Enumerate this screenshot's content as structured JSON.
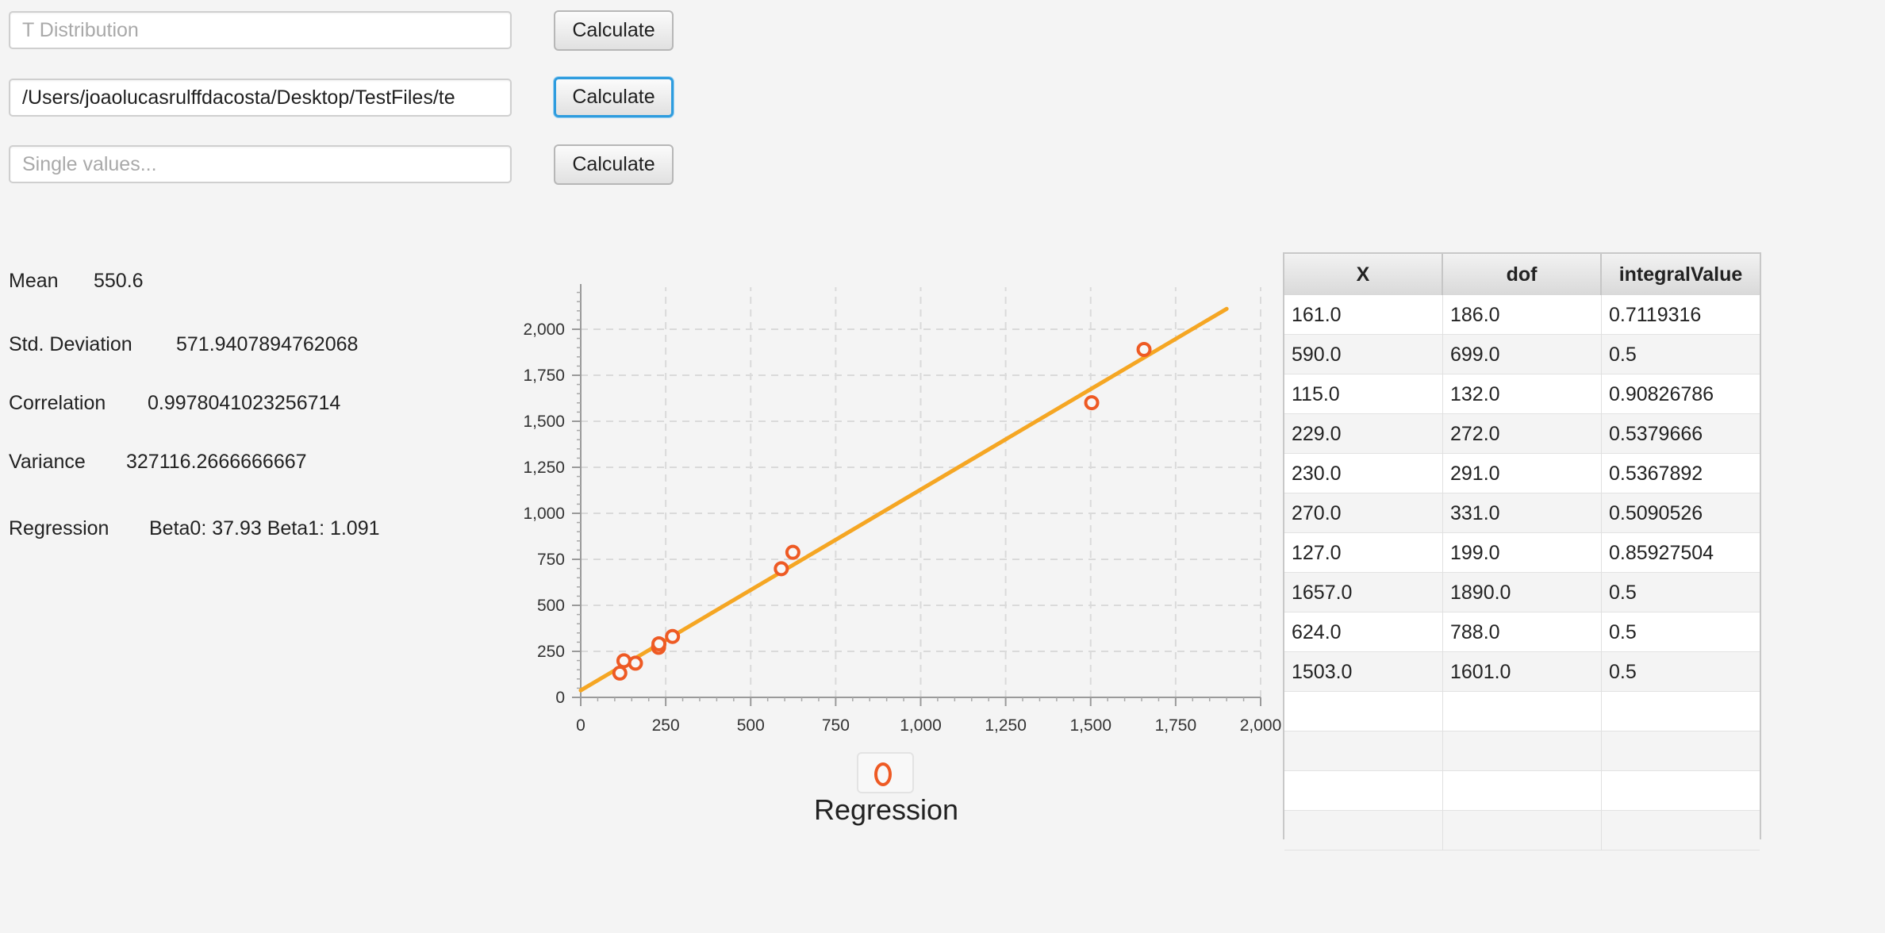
{
  "inputs": {
    "t_distribution": {
      "value": "",
      "placeholder": "T Distribution",
      "button": "Calculate"
    },
    "file_path": {
      "value": "/Users/joaolucasrulffdacosta/Desktop/TestFiles/te",
      "placeholder": "",
      "button": "Calculate"
    },
    "single_values": {
      "value": "",
      "placeholder": "Single values...",
      "button": "Calculate"
    }
  },
  "stats": {
    "mean": {
      "label": "Mean",
      "value": "550.6"
    },
    "std_dev": {
      "label": "Std. Deviation",
      "value": "571.9407894762068"
    },
    "correlation": {
      "label": "Correlation",
      "value": "0.9978041023256714"
    },
    "variance": {
      "label": "Variance",
      "value": "327116.2666666667"
    },
    "regression": {
      "label": "Regression",
      "value": "Beta0: 37.93 Beta1: 1.091"
    }
  },
  "chart_data": {
    "type": "scatter",
    "title": "",
    "legend": "Regression",
    "xlim": [
      0,
      2000
    ],
    "ylim": [
      0,
      2000
    ],
    "x_ticks": [
      "0",
      "250",
      "500",
      "750",
      "1,000",
      "1,250",
      "1,500",
      "1,750",
      "2,000"
    ],
    "y_ticks": [
      "0",
      "250",
      "500",
      "750",
      "1,000",
      "1,250",
      "1,500",
      "1,750",
      "2,000"
    ],
    "points": [
      {
        "x": 161,
        "y": 186
      },
      {
        "x": 590,
        "y": 699
      },
      {
        "x": 115,
        "y": 132
      },
      {
        "x": 229,
        "y": 272
      },
      {
        "x": 230,
        "y": 291
      },
      {
        "x": 270,
        "y": 331
      },
      {
        "x": 127,
        "y": 199
      },
      {
        "x": 1657,
        "y": 1890
      },
      {
        "x": 624,
        "y": 788
      },
      {
        "x": 1503,
        "y": 1601
      }
    ],
    "regression_line": {
      "beta0": 37.93,
      "beta1": 1.091,
      "x_range": [
        0,
        1900
      ]
    },
    "line_color": "#f5a623",
    "point_color": "#ee5a24",
    "grid": true
  },
  "table": {
    "columns": [
      "X",
      "dof",
      "integralValue"
    ],
    "rows": [
      [
        "161.0",
        "186.0",
        "0.7119316"
      ],
      [
        "590.0",
        "699.0",
        "0.5"
      ],
      [
        "115.0",
        "132.0",
        "0.90826786"
      ],
      [
        "229.0",
        "272.0",
        "0.5379666"
      ],
      [
        "230.0",
        "291.0",
        "0.5367892"
      ],
      [
        "270.0",
        "331.0",
        "0.5090526"
      ],
      [
        "127.0",
        "199.0",
        "0.85927504"
      ],
      [
        "1657.0",
        "1890.0",
        "0.5"
      ],
      [
        "624.0",
        "788.0",
        "0.5"
      ],
      [
        "1503.0",
        "1601.0",
        "0.5"
      ]
    ],
    "empty_rows": 4
  }
}
